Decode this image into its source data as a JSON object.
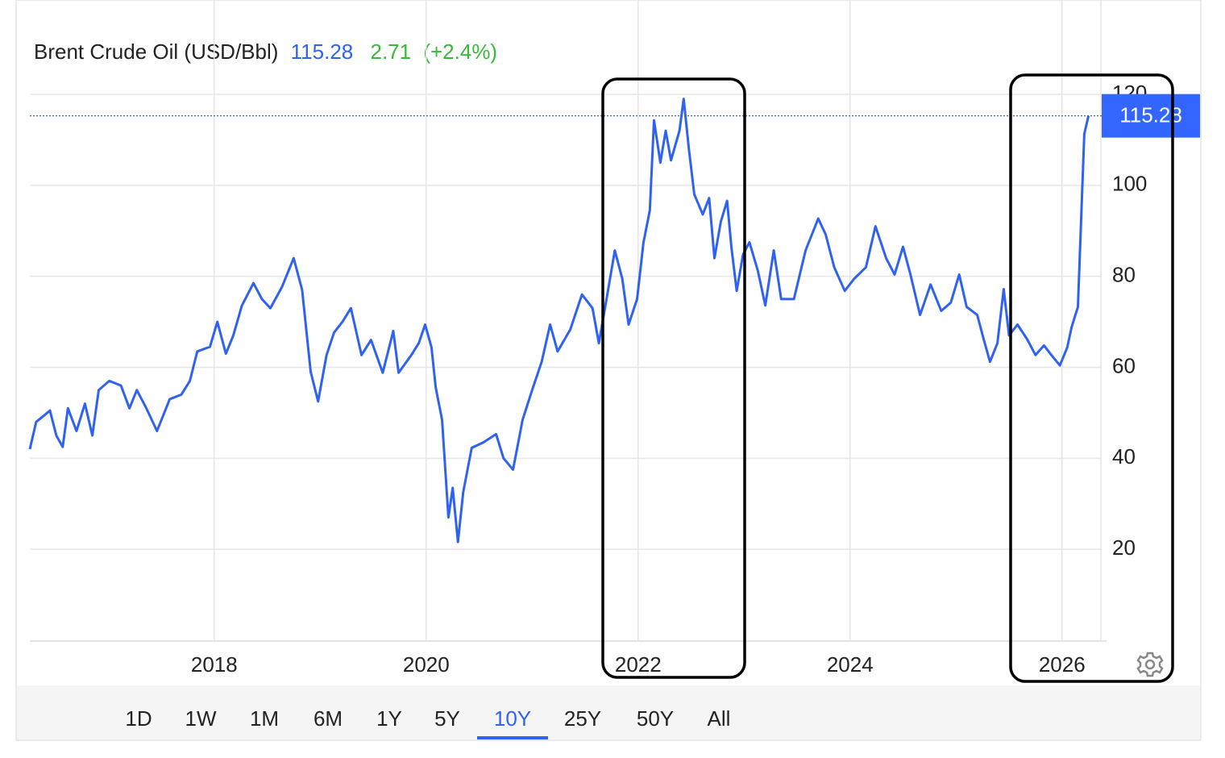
{
  "chart_data": {
    "type": "line",
    "title": "Brent Crude Oil (USD/Bbl)",
    "price": 115.28,
    "change": 2.71,
    "change_pct": {
      "value": 2.4,
      "label": "(+2.4%)"
    },
    "series": [
      {
        "name": "Brent Crude Oil",
        "color": "#2f62f0",
        "x": [
          2016.26,
          2016.32,
          2016.4,
          2016.45,
          2016.51,
          2016.57,
          2016.62,
          2016.7,
          2016.78,
          2016.85,
          2016.91,
          2017.01,
          2017.12,
          2017.2,
          2017.27,
          2017.36,
          2017.46,
          2017.58,
          2017.69,
          2017.77,
          2017.84,
          2017.96,
          2018.03,
          2018.11,
          2018.18,
          2018.26,
          2018.37,
          2018.45,
          2018.53,
          2018.64,
          2018.75,
          2018.83,
          2018.87,
          2018.91,
          2018.98,
          2019.06,
          2019.13,
          2019.21,
          2019.29,
          2019.39,
          2019.48,
          2019.59,
          2019.69,
          2019.74,
          2019.86,
          2019.93,
          2019.99,
          2020.05,
          2020.09,
          2020.15,
          2020.21,
          2020.25,
          2020.3,
          2020.35,
          2020.43,
          2020.54,
          2020.66,
          2020.73,
          2020.82,
          2020.91,
          2021.0,
          2021.09,
          2021.17,
          2021.24,
          2021.36,
          2021.47,
          2021.57,
          2021.63,
          2021.7,
          2021.78,
          2021.85,
          2021.91,
          2021.99,
          2022.05,
          2022.11,
          2022.15,
          2022.21,
          2022.26,
          2022.31,
          2022.39,
          2022.43,
          2022.48,
          2022.53,
          2022.61,
          2022.67,
          2022.72,
          2022.78,
          2022.84,
          2022.88,
          2022.93,
          2022.99,
          2023.05,
          2023.13,
          2023.2,
          2023.28,
          2023.35,
          2023.47,
          2023.58,
          2023.7,
          2023.77,
          2023.85,
          2023.95,
          2024.04,
          2024.15,
          2024.24,
          2024.34,
          2024.42,
          2024.5,
          2024.57,
          2024.66,
          2024.76,
          2024.86,
          2024.95,
          2025.03,
          2025.1,
          2025.2,
          2025.26,
          2025.32,
          2025.39,
          2025.45,
          2025.5,
          2025.58,
          2025.67,
          2025.75,
          2025.83,
          2025.9,
          2025.98,
          2026.05,
          2026.09,
          2026.15,
          2026.21,
          2026.25
        ],
        "values": [
          42,
          48,
          49.5,
          50.5,
          45,
          42.5,
          51,
          46,
          52,
          45,
          55,
          57,
          56,
          51,
          55,
          51,
          46,
          53,
          54,
          57,
          63.5,
          64.5,
          70,
          63,
          67,
          73.5,
          78.5,
          75,
          73,
          77.7,
          84,
          77,
          68,
          59,
          52.5,
          62.7,
          67.6,
          70,
          73,
          62.7,
          66,
          58.8,
          68,
          58.8,
          62.7,
          65.3,
          69.4,
          64.4,
          55.6,
          48.5,
          27,
          33.5,
          21.6,
          32.6,
          42.3,
          43.5,
          45.3,
          40,
          37.5,
          48.5,
          55,
          61.2,
          69.4,
          63.5,
          68.3,
          76,
          73,
          65.3,
          74.7,
          85.7,
          79.5,
          69.4,
          75,
          87.4,
          94.5,
          114.3,
          105,
          112,
          105.5,
          112,
          119,
          107.8,
          98,
          93.6,
          97.2,
          84,
          92,
          96.6,
          86.5,
          76.8,
          84.8,
          87.5,
          81.2,
          73.6,
          85.7,
          75,
          75,
          85.7,
          92.7,
          89.2,
          82,
          76.8,
          79.5,
          82,
          91,
          84,
          80.4,
          86.5,
          80.4,
          71.5,
          78.2,
          72.4,
          74.2,
          80.4,
          73.3,
          71.5,
          66.2,
          61.2,
          65.3,
          77.2,
          67,
          69.4,
          66.2,
          62.7,
          64.8,
          62.7,
          60.4,
          64.4,
          68.8,
          73.3,
          111.3,
          115.28
        ]
      }
    ],
    "xlim": [
      2016.26,
      2026.42
    ],
    "ylim": [
      0,
      120
    ],
    "xticks": [
      2018,
      2020,
      2022,
      2024,
      2026
    ],
    "yticks": [
      20,
      40,
      60,
      80,
      100,
      120
    ],
    "grid": true,
    "ranges": [
      "1D",
      "1W",
      "1M",
      "6M",
      "1Y",
      "5Y",
      "10Y",
      "25Y",
      "50Y",
      "All"
    ],
    "active_range": "10Y"
  }
}
